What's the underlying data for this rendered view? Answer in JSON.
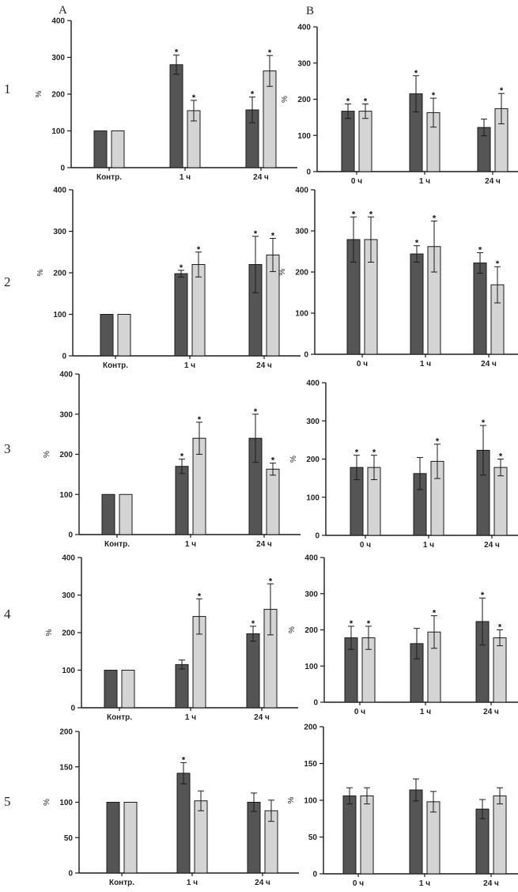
{
  "figure": {
    "column_labels": [
      "A",
      "B"
    ],
    "row_labels": [
      "1",
      "2",
      "3",
      "4",
      "5"
    ],
    "colors": {
      "dark": "#555555",
      "light": "#d4d4d4",
      "stroke": "#1a1a1a",
      "axis": "#1a1a1a"
    }
  },
  "chart_data": [
    {
      "id": "A1",
      "type": "bar",
      "column": "A",
      "row": "1",
      "ylabel": "%",
      "ylim": [
        0,
        400
      ],
      "yticks": [
        0,
        100,
        200,
        300,
        400
      ],
      "categories": [
        "Контр.",
        "1 ч",
        "24 ч"
      ],
      "series": [
        {
          "name": "dark",
          "values": [
            100,
            280,
            157
          ],
          "errors": [
            0,
            26,
            35
          ],
          "significant": [
            false,
            true,
            true
          ]
        },
        {
          "name": "light",
          "values": [
            100,
            155,
            263
          ],
          "errors": [
            0,
            28,
            42
          ],
          "significant": [
            false,
            true,
            true
          ]
        }
      ]
    },
    {
      "id": "B1",
      "type": "bar",
      "column": "B",
      "row": "1",
      "ylabel": "%",
      "ylim": [
        0,
        400
      ],
      "yticks": [
        0,
        100,
        200,
        300,
        400
      ],
      "categories": [
        "0 ч",
        "1 ч",
        "24 ч"
      ],
      "series": [
        {
          "name": "dark",
          "values": [
            167,
            215,
            122
          ],
          "errors": [
            20,
            50,
            23
          ],
          "significant": [
            true,
            true,
            false
          ]
        },
        {
          "name": "light",
          "values": [
            167,
            163,
            174
          ],
          "errors": [
            20,
            40,
            42
          ],
          "significant": [
            true,
            true,
            true
          ]
        }
      ]
    },
    {
      "id": "A2",
      "type": "bar",
      "column": "A",
      "row": "2",
      "ylabel": "%",
      "ylim": [
        0,
        400
      ],
      "yticks": [
        0,
        100,
        200,
        300,
        400
      ],
      "categories": [
        "Контр.",
        "1 ч",
        "24 ч"
      ],
      "series": [
        {
          "name": "dark",
          "values": [
            100,
            198,
            220
          ],
          "errors": [
            0,
            8,
            68
          ],
          "significant": [
            false,
            true,
            true
          ]
        },
        {
          "name": "light",
          "values": [
            100,
            220,
            243
          ],
          "errors": [
            0,
            30,
            40
          ],
          "significant": [
            false,
            true,
            true
          ]
        }
      ]
    },
    {
      "id": "B2",
      "type": "bar",
      "column": "B",
      "row": "2",
      "ylabel": "%",
      "ylim": [
        0,
        400
      ],
      "yticks": [
        0,
        100,
        200,
        300,
        400
      ],
      "categories": [
        "0 ч",
        "1 ч",
        "24 ч"
      ],
      "series": [
        {
          "name": "dark",
          "values": [
            279,
            244,
            222
          ],
          "errors": [
            55,
            20,
            25
          ],
          "significant": [
            true,
            true,
            true
          ]
        },
        {
          "name": "light",
          "values": [
            279,
            262,
            169
          ],
          "errors": [
            55,
            62,
            44
          ],
          "significant": [
            true,
            true,
            true
          ]
        }
      ]
    },
    {
      "id": "A3",
      "type": "bar",
      "column": "A",
      "row": "3",
      "ylabel": "%",
      "ylim": [
        0,
        400
      ],
      "yticks": [
        0,
        100,
        200,
        300,
        400
      ],
      "categories": [
        "Контр.",
        "1 ч",
        "24 ч"
      ],
      "series": [
        {
          "name": "dark",
          "values": [
            100,
            170,
            240
          ],
          "errors": [
            0,
            18,
            60
          ],
          "significant": [
            false,
            true,
            true
          ]
        },
        {
          "name": "light",
          "values": [
            100,
            240,
            163
          ],
          "errors": [
            0,
            40,
            15
          ],
          "significant": [
            false,
            true,
            true
          ]
        }
      ]
    },
    {
      "id": "B3",
      "type": "bar",
      "column": "B",
      "row": "3",
      "ylabel": "%",
      "ylim": [
        0,
        400
      ],
      "yticks": [
        0,
        100,
        200,
        300,
        400
      ],
      "categories": [
        "0 ч",
        "1 ч",
        "24 ч"
      ],
      "series": [
        {
          "name": "dark",
          "values": [
            178,
            162,
            223
          ],
          "errors": [
            32,
            42,
            65
          ],
          "significant": [
            true,
            false,
            true
          ]
        },
        {
          "name": "light",
          "values": [
            178,
            194,
            178
          ],
          "errors": [
            32,
            45,
            22
          ],
          "significant": [
            true,
            true,
            true
          ]
        }
      ]
    },
    {
      "id": "A4",
      "type": "bar",
      "column": "A",
      "row": "4",
      "ylabel": "%",
      "ylim": [
        0,
        400
      ],
      "yticks": [
        0,
        100,
        200,
        300,
        400
      ],
      "categories": [
        "Контр.",
        "1 ч",
        "24 ч"
      ],
      "series": [
        {
          "name": "dark",
          "values": [
            100,
            115,
            197
          ],
          "errors": [
            0,
            12,
            20
          ],
          "significant": [
            false,
            false,
            true
          ]
        },
        {
          "name": "light",
          "values": [
            100,
            243,
            262
          ],
          "errors": [
            0,
            47,
            68
          ],
          "significant": [
            false,
            true,
            true
          ]
        }
      ]
    },
    {
      "id": "B4",
      "type": "bar",
      "column": "B",
      "row": "4",
      "ylabel": "%",
      "ylim": [
        0,
        400
      ],
      "yticks": [
        0,
        100,
        200,
        300,
        400
      ],
      "categories": [
        "0 ч",
        "1 ч",
        "24 ч"
      ],
      "series": [
        {
          "name": "dark",
          "values": [
            178,
            162,
            223
          ],
          "errors": [
            32,
            42,
            65
          ],
          "significant": [
            true,
            false,
            true
          ]
        },
        {
          "name": "light",
          "values": [
            178,
            194,
            178
          ],
          "errors": [
            32,
            45,
            22
          ],
          "significant": [
            true,
            true,
            true
          ]
        }
      ]
    },
    {
      "id": "A5",
      "type": "bar",
      "column": "A",
      "row": "5",
      "ylabel": "%",
      "ylim": [
        0,
        200
      ],
      "yticks": [
        0,
        50,
        100,
        150,
        200
      ],
      "categories": [
        "Контр.",
        "1 ч",
        "24 ч"
      ],
      "series": [
        {
          "name": "dark",
          "values": [
            100,
            141,
            100
          ],
          "errors": [
            0,
            15,
            13
          ],
          "significant": [
            false,
            true,
            false
          ]
        },
        {
          "name": "light",
          "values": [
            100,
            102,
            88
          ],
          "errors": [
            0,
            14,
            15
          ],
          "significant": [
            false,
            false,
            false
          ]
        }
      ]
    },
    {
      "id": "B5",
      "type": "bar",
      "column": "B",
      "row": "5",
      "ylabel": "%",
      "ylim": [
        0,
        200
      ],
      "yticks": [
        0,
        50,
        100,
        150,
        200
      ],
      "categories": [
        "0 ч",
        "1 ч",
        "24 ч"
      ],
      "series": [
        {
          "name": "dark",
          "values": [
            106,
            114,
            88
          ],
          "errors": [
            11,
            15,
            13
          ],
          "significant": [
            false,
            false,
            false
          ]
        },
        {
          "name": "light",
          "values": [
            106,
            98,
            106
          ],
          "errors": [
            11,
            14,
            11
          ],
          "significant": [
            false,
            false,
            false
          ]
        }
      ]
    }
  ]
}
